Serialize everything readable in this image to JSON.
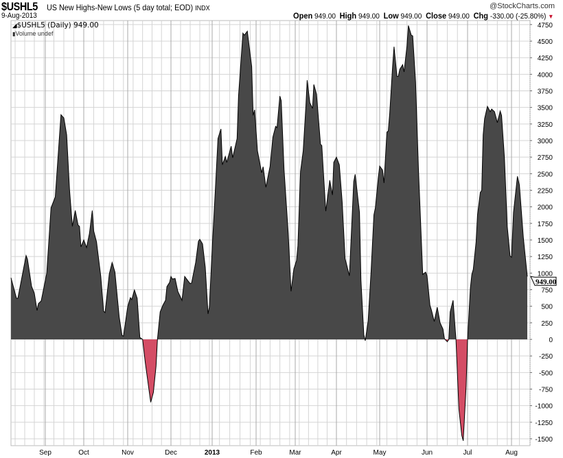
{
  "header": {
    "symbol": "$USHL5",
    "description": "US New Highs-New Lows (5 day total; EOD)",
    "exchange": "INDX",
    "brand": "@StockCharts.com",
    "date": "9-Aug-2013",
    "open_label": "Open",
    "open": "949.00",
    "high_label": "High",
    "high": "949.00",
    "low_label": "Low",
    "low": "949.00",
    "close_label": "Close",
    "close": "949.00",
    "chg_label": "Chg",
    "chg": "-330.00 (-25.80%)",
    "chg_direction": "down"
  },
  "legend": {
    "series": "$USHL5 (Daily) 949.00",
    "volume": "Volume undef"
  },
  "price_tag": "949.00",
  "colors": {
    "positive_fill": "#484848",
    "negative_fill": "#d44d65",
    "line": "#000000",
    "down": "#c8102e"
  },
  "chart_data": {
    "type": "area",
    "title": "$USHL5 US New Highs-New Lows (5 day total; EOD)",
    "ylim": [
      -1500,
      4750
    ],
    "y_ticks": [
      -1500,
      -1250,
      -1000,
      -750,
      -500,
      -250,
      0,
      250,
      500,
      750,
      1000,
      1250,
      1500,
      1750,
      2000,
      2250,
      2500,
      2750,
      3000,
      3250,
      3500,
      3750,
      4000,
      4250,
      4500,
      4750
    ],
    "x_tick_labels": [
      "Sep",
      "Oct",
      "Nov",
      "Dec",
      "2013",
      "Feb",
      "Mar",
      "Apr",
      "May",
      "Jun",
      "Jul",
      "Aug"
    ],
    "grid": true,
    "y_axis_side": "right",
    "series": [
      {
        "points": [
          [
            "2012-08-10",
            930
          ],
          [
            "2012-08-14",
            620
          ],
          [
            "2012-08-15",
            620
          ],
          [
            "2012-08-21",
            1265
          ],
          [
            "2012-08-22",
            1210
          ],
          [
            "2012-08-25",
            800
          ],
          [
            "2012-08-27",
            695
          ],
          [
            "2012-08-29",
            435
          ],
          [
            "2012-08-30",
            540
          ],
          [
            "2012-09-01",
            580
          ],
          [
            "2012-09-05",
            1000
          ],
          [
            "2012-09-08",
            1985
          ],
          [
            "2012-09-09",
            2040
          ],
          [
            "2012-09-11",
            2150
          ],
          [
            "2012-09-15",
            3390
          ],
          [
            "2012-09-17",
            3340
          ],
          [
            "2012-09-19",
            3085
          ],
          [
            "2012-09-21",
            2255
          ],
          [
            "2012-09-23",
            1705
          ],
          [
            "2012-09-25",
            1945
          ],
          [
            "2012-09-27",
            1725
          ],
          [
            "2012-09-28",
            1705
          ],
          [
            "2012-09-29",
            1395
          ],
          [
            "2012-10-01",
            1500
          ],
          [
            "2012-10-03",
            1385
          ],
          [
            "2012-10-05",
            1600
          ],
          [
            "2012-10-07",
            1945
          ],
          [
            "2012-10-08",
            1635
          ],
          [
            "2012-10-10",
            1470
          ],
          [
            "2012-10-13",
            950
          ],
          [
            "2012-10-15",
            425
          ],
          [
            "2012-10-16",
            405
          ],
          [
            "2012-10-19",
            990
          ],
          [
            "2012-10-21",
            1160
          ],
          [
            "2012-10-23",
            1015
          ],
          [
            "2012-10-26",
            340
          ],
          [
            "2012-10-28",
            60
          ],
          [
            "2012-10-29",
            50
          ],
          [
            "2012-11-01",
            495
          ],
          [
            "2012-11-03",
            630
          ],
          [
            "2012-11-04",
            600
          ],
          [
            "2012-11-06",
            745
          ],
          [
            "2012-11-08",
            620
          ],
          [
            "2012-11-10",
            30
          ],
          [
            "2012-11-12",
            0
          ],
          [
            "2012-11-14",
            -350
          ],
          [
            "2012-11-18",
            -950
          ],
          [
            "2012-11-20",
            -800
          ],
          [
            "2012-11-22",
            -400
          ],
          [
            "2012-11-23",
            0
          ],
          [
            "2012-11-25",
            415
          ],
          [
            "2012-11-27",
            515
          ],
          [
            "2012-11-29",
            590
          ],
          [
            "2012-11-30",
            795
          ],
          [
            "2012-12-02",
            860
          ],
          [
            "2012-12-03",
            950
          ],
          [
            "2012-12-04",
            910
          ],
          [
            "2012-12-06",
            920
          ],
          [
            "2012-12-08",
            725
          ],
          [
            "2012-12-11",
            590
          ],
          [
            "2012-12-13",
            950
          ],
          [
            "2012-12-17",
            840
          ],
          [
            "2012-12-18",
            850
          ],
          [
            "2012-12-21",
            1160
          ],
          [
            "2012-12-23",
            1480
          ],
          [
            "2012-12-24",
            1510
          ],
          [
            "2012-12-26",
            1440
          ],
          [
            "2012-12-28",
            1085
          ],
          [
            "2012-12-30",
            385
          ],
          [
            "2012-12-31",
            495
          ],
          [
            "2013-01-02",
            1365
          ],
          [
            "2013-01-04",
            2190
          ],
          [
            "2013-01-06",
            3030
          ],
          [
            "2013-01-08",
            3175
          ],
          [
            "2013-01-09",
            2635
          ],
          [
            "2013-01-11",
            2760
          ],
          [
            "2013-01-12",
            2670
          ],
          [
            "2013-01-15",
            2915
          ],
          [
            "2013-01-16",
            2740
          ],
          [
            "2013-01-19",
            3030
          ],
          [
            "2013-01-20",
            3670
          ],
          [
            "2013-01-23",
            4620
          ],
          [
            "2013-01-24",
            4590
          ],
          [
            "2013-01-26",
            4650
          ],
          [
            "2013-01-29",
            4115
          ],
          [
            "2013-01-30",
            3380
          ],
          [
            "2013-01-31",
            3465
          ],
          [
            "2013-02-02",
            2845
          ],
          [
            "2013-02-05",
            2515
          ],
          [
            "2013-02-06",
            2605
          ],
          [
            "2013-02-08",
            2295
          ],
          [
            "2013-02-11",
            2615
          ],
          [
            "2013-02-13",
            3050
          ],
          [
            "2013-02-15",
            3215
          ],
          [
            "2013-02-16",
            3195
          ],
          [
            "2013-02-18",
            3670
          ],
          [
            "2013-02-19",
            3600
          ],
          [
            "2013-02-21",
            2565
          ],
          [
            "2013-02-24",
            1600
          ],
          [
            "2013-02-26",
            725
          ],
          [
            "2013-02-28",
            1065
          ],
          [
            "2013-03-02",
            1190
          ],
          [
            "2013-03-03",
            1415
          ],
          [
            "2013-03-05",
            2535
          ],
          [
            "2013-03-07",
            2845
          ],
          [
            "2013-03-09",
            3515
          ],
          [
            "2013-03-10",
            3910
          ],
          [
            "2013-03-12",
            3570
          ],
          [
            "2013-03-14",
            3485
          ],
          [
            "2013-03-15",
            3845
          ],
          [
            "2013-03-17",
            3700
          ],
          [
            "2013-03-20",
            2945
          ],
          [
            "2013-03-21",
            2925
          ],
          [
            "2013-03-24",
            1935
          ],
          [
            "2013-03-26",
            2245
          ],
          [
            "2013-03-27",
            2400
          ],
          [
            "2013-03-29",
            2180
          ],
          [
            "2013-03-30",
            2670
          ],
          [
            "2013-04-01",
            2750
          ],
          [
            "2013-04-03",
            2635
          ],
          [
            "2013-04-05",
            2070
          ],
          [
            "2013-04-07",
            1220
          ],
          [
            "2013-04-10",
            960
          ],
          [
            "2013-04-13",
            2380
          ],
          [
            "2013-04-14",
            2490
          ],
          [
            "2013-04-17",
            1915
          ],
          [
            "2013-04-18",
            900
          ],
          [
            "2013-04-20",
            70
          ],
          [
            "2013-04-21",
            -20
          ],
          [
            "2013-04-23",
            280
          ],
          [
            "2013-04-25",
            1015
          ],
          [
            "2013-04-27",
            1880
          ],
          [
            "2013-04-28",
            1985
          ],
          [
            "2013-04-30",
            2430
          ],
          [
            "2013-05-01",
            2615
          ],
          [
            "2013-05-03",
            2555
          ],
          [
            "2013-05-04",
            2360
          ],
          [
            "2013-05-06",
            3125
          ],
          [
            "2013-05-07",
            3145
          ],
          [
            "2013-05-08",
            3410
          ],
          [
            "2013-05-10",
            4115
          ],
          [
            "2013-05-11",
            4415
          ],
          [
            "2013-05-13",
            3970
          ],
          [
            "2013-05-14",
            3970
          ],
          [
            "2013-05-15",
            4075
          ],
          [
            "2013-05-17",
            4145
          ],
          [
            "2013-05-18",
            4035
          ],
          [
            "2013-05-20",
            4425
          ],
          [
            "2013-05-21",
            4735
          ],
          [
            "2013-05-23",
            4590
          ],
          [
            "2013-05-24",
            4580
          ],
          [
            "2013-05-26",
            3880
          ],
          [
            "2013-05-28",
            2565
          ],
          [
            "2013-05-31",
            980
          ],
          [
            "2013-06-02",
            1015
          ],
          [
            "2013-06-03",
            960
          ],
          [
            "2013-06-05",
            515
          ],
          [
            "2013-06-06",
            445
          ],
          [
            "2013-06-08",
            270
          ],
          [
            "2013-06-10",
            485
          ],
          [
            "2013-06-12",
            250
          ],
          [
            "2013-06-14",
            155
          ],
          [
            "2013-06-15",
            10
          ],
          [
            "2013-06-17",
            -35
          ],
          [
            "2013-06-18",
            0
          ],
          [
            "2013-06-19",
            415
          ],
          [
            "2013-06-21",
            590
          ],
          [
            "2013-06-23",
            0
          ],
          [
            "2013-06-25",
            -1055
          ],
          [
            "2013-06-27",
            -1450
          ],
          [
            "2013-06-28",
            -1530
          ],
          [
            "2013-06-30",
            -705
          ],
          [
            "2013-07-01",
            0
          ],
          [
            "2013-07-03",
            775
          ],
          [
            "2013-07-04",
            980
          ],
          [
            "2013-07-05",
            1055
          ],
          [
            "2013-07-07",
            1470
          ],
          [
            "2013-07-08",
            1880
          ],
          [
            "2013-07-10",
            2220
          ],
          [
            "2013-07-11",
            2245
          ],
          [
            "2013-07-12",
            3085
          ],
          [
            "2013-07-13",
            3330
          ],
          [
            "2013-07-15",
            3515
          ],
          [
            "2013-07-17",
            3435
          ],
          [
            "2013-07-18",
            3475
          ],
          [
            "2013-07-20",
            3435
          ],
          [
            "2013-07-22",
            3270
          ],
          [
            "2013-07-24",
            3445
          ],
          [
            "2013-07-25",
            3380
          ],
          [
            "2013-07-27",
            2740
          ],
          [
            "2013-07-29",
            1705
          ],
          [
            "2013-07-31",
            1260
          ],
          [
            "2013-08-01",
            1240
          ],
          [
            "2013-08-02",
            1915
          ],
          [
            "2013-08-04",
            2460
          ],
          [
            "2013-08-05",
            2330
          ],
          [
            "2013-08-07",
            1530
          ],
          [
            "2013-08-09",
            949
          ]
        ]
      }
    ]
  }
}
